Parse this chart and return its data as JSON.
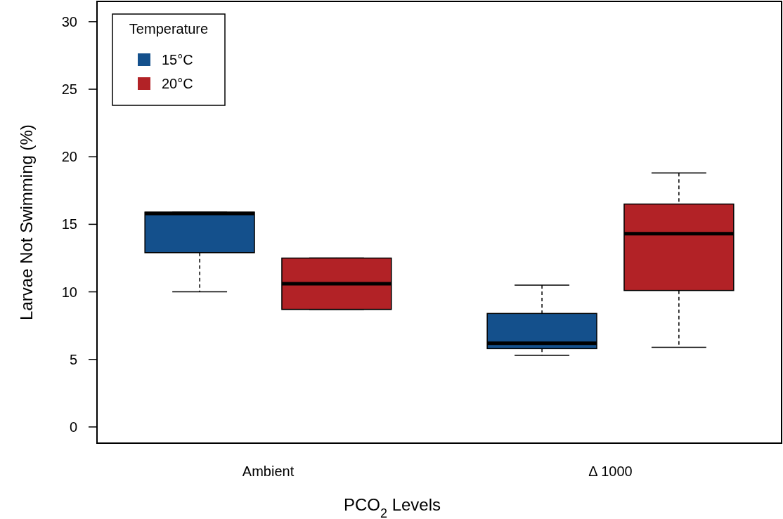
{
  "chart_data": {
    "type": "box",
    "xlabel": "PCO$_{2}$ Levels",
    "ylabel": "Larvae Not Swimming (%)",
    "legend_title": "Temperature",
    "legend": "top left",
    "grid": false,
    "categories": [
      "Ambient",
      "Δ 1000"
    ],
    "ylim": [
      -1.2,
      31.5
    ],
    "yticks": [
      0,
      5,
      10,
      15,
      20,
      25,
      30
    ],
    "series": [
      {
        "name": "15°C",
        "color": "#14508c",
        "boxes": [
          {
            "low": 10.0,
            "q1": 12.9,
            "median": 15.8,
            "q3": 15.9,
            "high": 15.9
          },
          {
            "low": 5.3,
            "q1": 5.8,
            "median": 6.2,
            "q3": 8.4,
            "high": 10.5
          }
        ]
      },
      {
        "name": "20°C",
        "color": "#b22226",
        "boxes": [
          {
            "low": 8.7,
            "q1": 8.7,
            "median": 10.6,
            "q3": 12.5,
            "high": 12.5
          },
          {
            "low": 5.9,
            "q1": 10.1,
            "median": 14.3,
            "q3": 16.5,
            "high": 18.8
          }
        ]
      }
    ]
  }
}
